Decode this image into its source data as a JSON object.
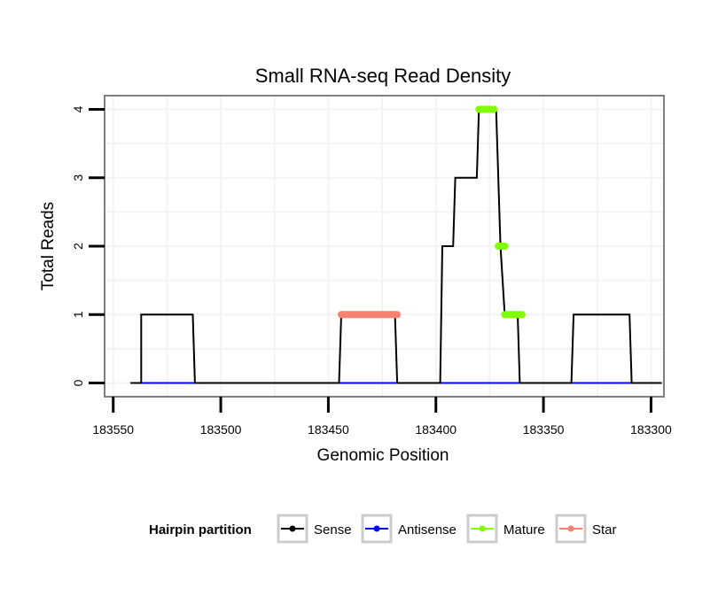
{
  "chart_data": {
    "type": "line",
    "title": "Small RNA-seq Read Density",
    "xlabel": "Genomic Position",
    "ylabel": "Total Reads",
    "x_reversed": true,
    "xlim": [
      183554,
      183294
    ],
    "ylim": [
      -0.2,
      4.2
    ],
    "x_ticks": [
      183550,
      183500,
      183450,
      183400,
      183350,
      183300
    ],
    "x_tick_labels": [
      "183550",
      "183500",
      "183450",
      "183400",
      "183350",
      "183300"
    ],
    "y_ticks": [
      0,
      1,
      2,
      3,
      4
    ],
    "y_tick_labels": [
      "0",
      "1",
      "2",
      "3",
      "4"
    ],
    "grid": true,
    "legend": {
      "title": "Hairpin partition",
      "position": "bottom",
      "entries": [
        {
          "label": "Sense",
          "color": "#000000"
        },
        {
          "label": "Antisense",
          "color": "#0000ff"
        },
        {
          "label": "Mature",
          "color": "#7fff00"
        },
        {
          "label": "Star",
          "color": "#fa8072"
        }
      ]
    },
    "series": [
      {
        "name": "Sense",
        "color": "#000000",
        "points": [
          [
            183542,
            0
          ],
          [
            183537,
            0
          ],
          [
            183537,
            1
          ],
          [
            183513,
            1
          ],
          [
            183512,
            0
          ],
          [
            183445,
            0
          ],
          [
            183444,
            1
          ],
          [
            183419,
            1
          ],
          [
            183418,
            0
          ],
          [
            183398,
            0
          ],
          [
            183397,
            2
          ],
          [
            183392,
            2
          ],
          [
            183391,
            3
          ],
          [
            183381,
            3
          ],
          [
            183380,
            4
          ],
          [
            183372,
            4
          ],
          [
            183370,
            2
          ],
          [
            183368,
            1
          ],
          [
            183362,
            1
          ],
          [
            183361,
            0
          ],
          [
            183337,
            0
          ],
          [
            183336,
            1
          ],
          [
            183310,
            1
          ],
          [
            183309,
            0
          ],
          [
            183295,
            0
          ]
        ]
      },
      {
        "name": "Antisense",
        "color": "#0000ff",
        "points": [
          [
            183537,
            0
          ],
          [
            183309,
            0
          ]
        ]
      },
      {
        "name": "Mature",
        "color": "#7fff00",
        "segments": [
          {
            "x": [
              183380,
              183373
            ],
            "y": 4
          },
          {
            "x": [
              183371,
              183368
            ],
            "y": 2
          },
          {
            "x": [
              183368,
              183360
            ],
            "y": 1
          }
        ]
      },
      {
        "name": "Star",
        "color": "#fa8072",
        "segments": [
          {
            "x": [
              183444,
              183418
            ],
            "y": 1
          }
        ]
      }
    ]
  }
}
